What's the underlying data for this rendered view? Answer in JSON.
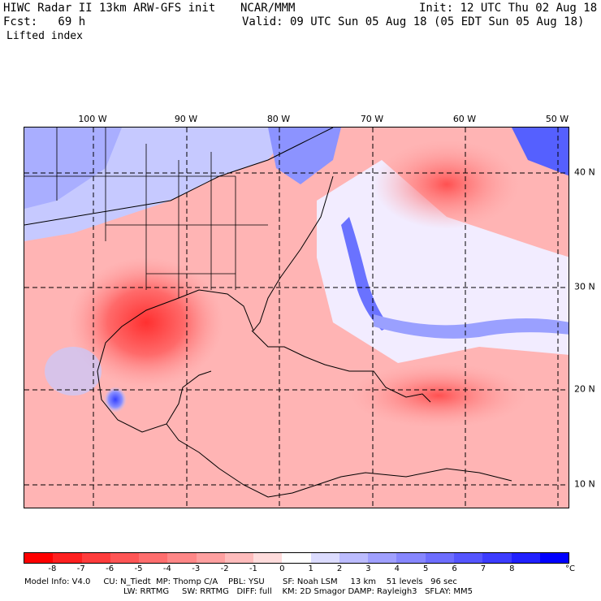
{
  "header": {
    "title_left": "HIWC Radar II 13km ARW-GFS init",
    "title_center": "NCAR/MMM",
    "init": "Init: 12 UTC Thu 02 Aug 18",
    "fcst": "Fcst:   69 h",
    "valid": "Valid: 09 UTC Sun 05 Aug 18 (05 EDT Sun 05 Aug 18)",
    "field": "Lifted index"
  },
  "map": {
    "lon_labels": [
      "100 W",
      "90 W",
      "80 W",
      "70 W",
      "60 W",
      "50 W"
    ],
    "lat_labels": [
      "40 N",
      "30 N",
      "20 N",
      "10 N"
    ],
    "colors": {
      "neg_strong": "#ff3b3b",
      "neg_mid": "#ff8080",
      "neg_light": "#ffc4c4",
      "neutral": "#fff2f2",
      "pos_light": "#c8ccff",
      "pos_mid": "#7f86ff",
      "pos_strong": "#1f2cf0"
    }
  },
  "colorbar": {
    "labels": [
      "-8",
      "-7",
      "-6",
      "-5",
      "-4",
      "-3",
      "-2",
      "-1",
      "0",
      "1",
      "2",
      "3",
      "4",
      "5",
      "6",
      "7",
      "8"
    ],
    "unit": "°C",
    "colors": [
      "#ff0000",
      "#ff2020",
      "#ff3c3c",
      "#ff5555",
      "#ff6e6e",
      "#ff8787",
      "#ffa0a0",
      "#ffbcbc",
      "#ffdcdc",
      "#ffffff",
      "#dcdcff",
      "#bcbcff",
      "#a0a0ff",
      "#8787ff",
      "#6e6eff",
      "#5555ff",
      "#3c3cff",
      "#2020ff",
      "#0000ff"
    ]
  },
  "footer": {
    "line1": "Model Info: V4.0     CU: N_Tiedt  MP: Thomp C/A    PBL: YSU       SF: Noah LSM     13 km    51 levels   96 sec",
    "line2": "LW: RRTMG     SW: RRTMG   DIFF: full    KM: 2D Smagor DAMP: Rayleigh3   SFLAY: MM5"
  }
}
